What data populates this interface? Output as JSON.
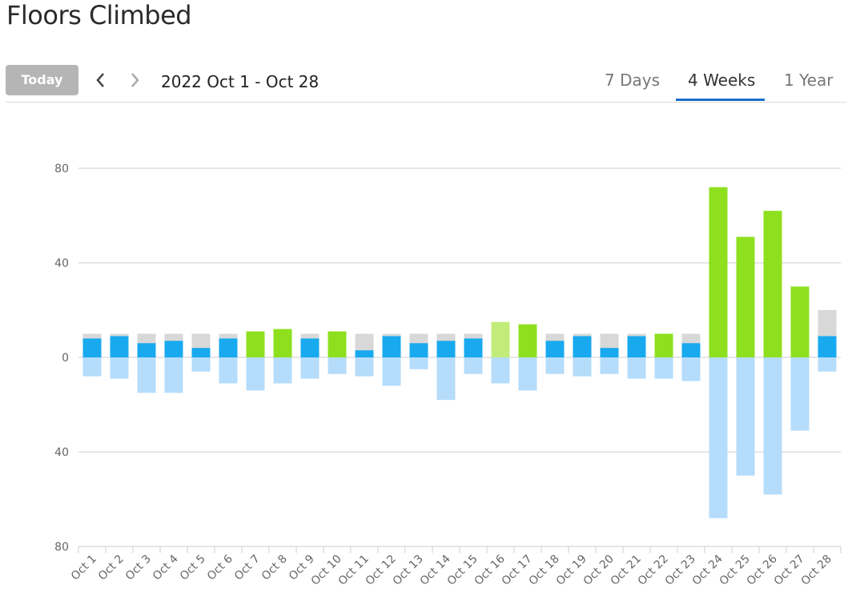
{
  "header": {
    "title": "Floors Climbed"
  },
  "toolbar": {
    "today_label": "Today",
    "prev_icon": "chevron-left-icon",
    "next_icon": "chevron-right-icon",
    "date_range": "2022 Oct 1 - Oct 28",
    "tabs": [
      {
        "label": "7 Days",
        "active": false
      },
      {
        "label": "4 Weeks",
        "active": true
      },
      {
        "label": "1 Year",
        "active": false
      }
    ]
  },
  "colors": {
    "up_below_goal": "#18a9ef",
    "up_goal_met": "#8ee01f",
    "up_goal_met_light": "#c2ec7a",
    "goal": "#d8d8d8",
    "down": "#b5dcfb",
    "gridline": "#cccccc",
    "tab_underline": "#1a6fc9"
  },
  "chart_data": {
    "type": "bar",
    "title": "Floors Climbed",
    "categories": [
      "Oct 1",
      "Oct 2",
      "Oct 3",
      "Oct 4",
      "Oct 5",
      "Oct 6",
      "Oct 7",
      "Oct 8",
      "Oct 9",
      "Oct 10",
      "Oct 11",
      "Oct 12",
      "Oct 13",
      "Oct 14",
      "Oct 15",
      "Oct 16",
      "Oct 17",
      "Oct 18",
      "Oct 19",
      "Oct 20",
      "Oct 21",
      "Oct 22",
      "Oct 23",
      "Oct 24",
      "Oct 25",
      "Oct 26",
      "Oct 27",
      "Oct 28"
    ],
    "series": [
      {
        "values": [
          8,
          9,
          6,
          7,
          4,
          8,
          11,
          12,
          8,
          11,
          3,
          9,
          6,
          7,
          8,
          15,
          14,
          7,
          9,
          4,
          9,
          10,
          6,
          72,
          51,
          62,
          30,
          9
        ]
      },
      {
        "values": [
          10,
          10,
          10,
          10,
          10,
          10,
          10,
          10,
          10,
          10,
          10,
          10,
          10,
          10,
          10,
          10,
          10,
          10,
          10,
          10,
          10,
          10,
          10,
          10,
          20,
          20,
          20,
          20
        ]
      },
      {
        "values": [
          8,
          9,
          15,
          15,
          6,
          11,
          14,
          11,
          9,
          7,
          8,
          12,
          5,
          18,
          7,
          11,
          14,
          7,
          8,
          7,
          9,
          9,
          10,
          68,
          50,
          58,
          31,
          6
        ]
      }
    ],
    "y_ticks": [
      80,
      40,
      0,
      40,
      80
    ],
    "ylim": [
      -80,
      80
    ],
    "grid": true
  }
}
